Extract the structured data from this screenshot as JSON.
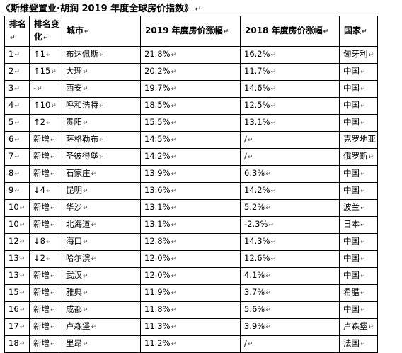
{
  "title": "《斯维登置业·胡润 2019 年度全球房价指数》",
  "headers": {
    "rank": "排名",
    "rank_change": "排名变化",
    "city": "城市",
    "change_2019": "2019 年度房价涨幅",
    "change_2018": "2018 年度房价涨幅",
    "country": "国家"
  },
  "rows": [
    {
      "rank": "1",
      "change": "↑1",
      "city": "布达佩斯",
      "y2019": "21.8%",
      "y2018": "16.2%",
      "country": "匈牙利"
    },
    {
      "rank": "2",
      "change": "↑15",
      "city": "大理",
      "y2019": "20.2%",
      "y2018": "11.7%",
      "country": "中国"
    },
    {
      "rank": "3",
      "change": "-",
      "city": "西安",
      "y2019": "19.7%",
      "y2018": "14.6%",
      "country": "中国"
    },
    {
      "rank": "4",
      "change": "↑10",
      "city": "呼和浩特",
      "y2019": "18.5%",
      "y2018": "12.5%",
      "country": "中国"
    },
    {
      "rank": "5",
      "change": "↑2",
      "city": "贵阳",
      "y2019": "15.5%",
      "y2018": "13.1%",
      "country": "中国"
    },
    {
      "rank": "6",
      "change": "新增",
      "city": "萨格勒布",
      "y2019": "14.5%",
      "y2018": "/",
      "country": "克罗地亚"
    },
    {
      "rank": "7",
      "change": "新增",
      "city": "圣彼得堡",
      "y2019": "14.2%",
      "y2018": "/",
      "country": "俄罗斯"
    },
    {
      "rank": "8",
      "change": "新增",
      "city": "石家庄",
      "y2019": "13.9%",
      "y2018": "6.3%",
      "country": "中国"
    },
    {
      "rank": "9",
      "change": "↓4",
      "city": "昆明",
      "y2019": "13.6%",
      "y2018": "14.2%",
      "country": "中国"
    },
    {
      "rank": "10",
      "change": "新增",
      "city": "华沙",
      "y2019": "13.1%",
      "y2018": "5.2%",
      "country": "波兰"
    },
    {
      "rank": "10",
      "change": "新增",
      "city": "北海道",
      "y2019": "13.1%",
      "y2018": "-2.3%",
      "country": "日本"
    },
    {
      "rank": "12",
      "change": "↓8",
      "city": "海口",
      "y2019": "12.8%",
      "y2018": "14.3%",
      "country": "中国"
    },
    {
      "rank": "13",
      "change": "↓2",
      "city": "哈尔滨",
      "y2019": "12.0%",
      "y2018": "12.6%",
      "country": "中国"
    },
    {
      "rank": "13",
      "change": "新增",
      "city": "武汉",
      "y2019": "12.0%",
      "y2018": "4.1%",
      "country": "中国"
    },
    {
      "rank": "15",
      "change": "新增",
      "city": "雅典",
      "y2019": "11.9%",
      "y2018": "3.7%",
      "country": "希腊"
    },
    {
      "rank": "16",
      "change": "新增",
      "city": "成都",
      "y2019": "11.8%",
      "y2018": "5.6%",
      "country": "中国"
    },
    {
      "rank": "17",
      "change": "新增",
      "city": "卢森堡",
      "y2019": "11.3%",
      "y2018": "3.9%",
      "country": "卢森堡"
    },
    {
      "rank": "18",
      "change": "新增",
      "city": "里昂",
      "y2019": "11.2%",
      "y2018": "/",
      "country": "法国"
    }
  ]
}
